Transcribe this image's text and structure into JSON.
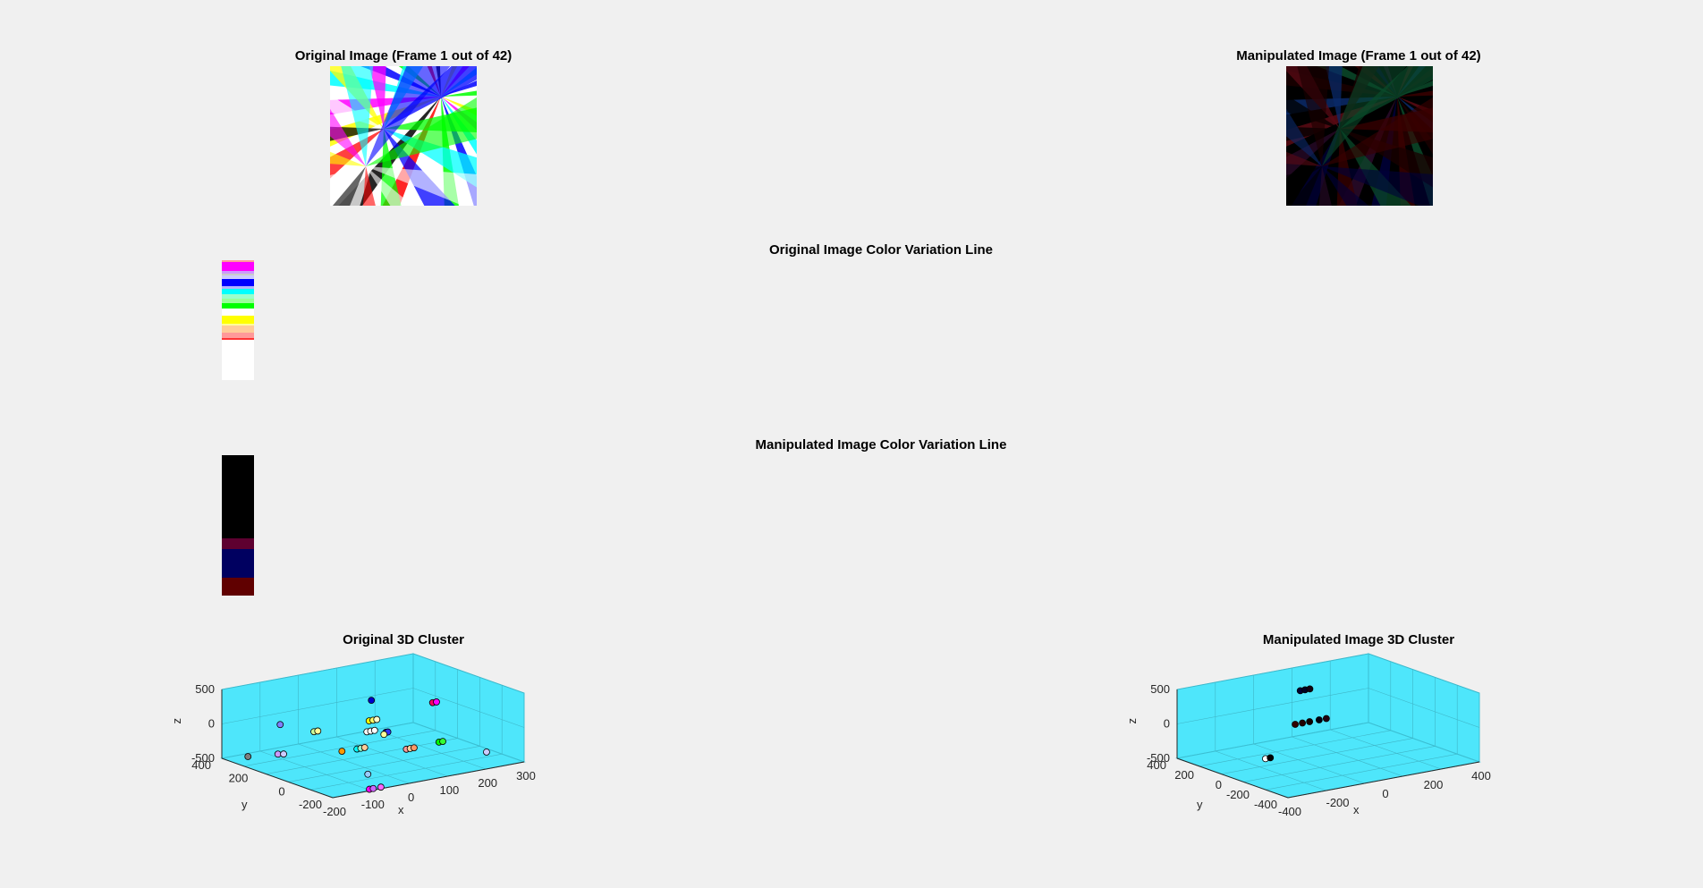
{
  "window": {
    "background": "#f0f0f0"
  },
  "titles": {
    "orig_image": "Original Image (Frame 1 out of 42)",
    "manip_image": "Manipulated Image (Frame 1 out of 42)",
    "orig_line": "Original Image Color Variation Line",
    "manip_line": "Manipulated Image Color Variation Line",
    "orig_cluster": "Original 3D Cluster",
    "manip_cluster": "Manipulated Image 3D Cluster"
  },
  "orig_colors": [
    "#ffffff",
    "#ffff00",
    "#ff00ff",
    "#00ffff",
    "#0000ff",
    "#00ff00",
    "#ffffff",
    "#ff0000",
    "#000000"
  ],
  "manip_colors": [
    "#000000",
    "#330000",
    "#000033",
    "#220022",
    "#001122",
    "#220000",
    "#002200",
    "#000022",
    "#111111"
  ],
  "orig_strip": [
    {
      "color": "#ff9999",
      "h": 2
    },
    {
      "color": "#ff00ff",
      "h": 2
    },
    {
      "color": "#ff00ff",
      "h": 8
    },
    {
      "color": "#cc99ff",
      "h": 3
    },
    {
      "color": "#cccccc",
      "h": 2
    },
    {
      "color": "#ccccff",
      "h": 4
    },
    {
      "color": "#0000ff",
      "h": 8
    },
    {
      "color": "#b3b3ff",
      "h": 3
    },
    {
      "color": "#00ffff",
      "h": 6
    },
    {
      "color": "#99ffcc",
      "h": 5
    },
    {
      "color": "#99ff99",
      "h": 5
    },
    {
      "color": "#00ff00",
      "h": 6
    },
    {
      "color": "#ffffff",
      "h": 8
    },
    {
      "color": "#ffff00",
      "h": 9
    },
    {
      "color": "#ffff99",
      "h": 2
    },
    {
      "color": "#ffcc99",
      "h": 8
    },
    {
      "color": "#ff9999",
      "h": 6
    },
    {
      "color": "#ff3333",
      "h": 2
    },
    {
      "color": "#ffffff",
      "h": 45
    }
  ],
  "manip_strip": [
    {
      "color": "#000000",
      "h": 93
    },
    {
      "color": "#5e0030",
      "h": 12
    },
    {
      "color": "#000060",
      "h": 32
    },
    {
      "color": "#600000",
      "h": 20
    }
  ],
  "orig_cluster": {
    "xlabel": "x",
    "ylabel": "y",
    "zlabel": "z",
    "xticks": [
      "-200",
      "-100",
      "0",
      "100",
      "200",
      "300"
    ],
    "yticks": [
      "-200",
      "0",
      "200",
      "400"
    ],
    "zticks": [
      "500",
      "0",
      "-500"
    ],
    "points": [
      {
        "x": -180,
        "y": 300,
        "z": -400,
        "c": "#7f7f7f"
      },
      {
        "x": -150,
        "y": 200,
        "z": -300,
        "c": "#cc99ff"
      },
      {
        "x": -140,
        "y": 190,
        "z": -300,
        "c": "#ccccff"
      },
      {
        "x": -120,
        "y": 250,
        "z": 50,
        "c": "#7f7fff"
      },
      {
        "x": -80,
        "y": 150,
        "z": 0,
        "c": "#ccff99"
      },
      {
        "x": -70,
        "y": 150,
        "z": 0,
        "c": "#ffff99"
      },
      {
        "x": -60,
        "y": 40,
        "z": -200,
        "c": "#ff9900"
      },
      {
        "x": -40,
        "y": 0,
        "z": -150,
        "c": "#00ffff"
      },
      {
        "x": -30,
        "y": 0,
        "z": -150,
        "c": "#99ffcc"
      },
      {
        "x": -20,
        "y": 0,
        "z": -150,
        "c": "#ffcc99"
      },
      {
        "x": -60,
        "y": -100,
        "z": -400,
        "c": "#99ccff"
      },
      {
        "x": -80,
        "y": -150,
        "z": -550,
        "c": "#ff00ff"
      },
      {
        "x": -70,
        "y": -150,
        "z": -550,
        "c": "#cc66ff"
      },
      {
        "x": -50,
        "y": -150,
        "z": -550,
        "c": "#ff66ff"
      },
      {
        "x": 10,
        "y": 50,
        "z": 0,
        "c": "#ffffff"
      },
      {
        "x": 20,
        "y": 50,
        "z": 0,
        "c": "#ffffff"
      },
      {
        "x": 30,
        "y": 50,
        "z": 0,
        "c": "#ffffff"
      },
      {
        "x": 40,
        "y": 100,
        "z": 80,
        "c": "#ffff00"
      },
      {
        "x": 50,
        "y": 100,
        "z": 80,
        "c": "#ffff66"
      },
      {
        "x": 60,
        "y": 100,
        "z": 80,
        "c": "#ffffcc"
      },
      {
        "x": 50,
        "y": 30,
        "z": -30,
        "c": "#0000ff"
      },
      {
        "x": 55,
        "y": 30,
        "z": -30,
        "c": "#3333ff"
      },
      {
        "x": 40,
        "y": 20,
        "z": -40,
        "c": "#ffff99"
      },
      {
        "x": 70,
        "y": 150,
        "z": 300,
        "c": "#0000cc"
      },
      {
        "x": 60,
        "y": -60,
        "z": -200,
        "c": "#ff9999"
      },
      {
        "x": 70,
        "y": -60,
        "z": -200,
        "c": "#ffcc99"
      },
      {
        "x": 80,
        "y": -60,
        "z": -200,
        "c": "#ff9966"
      },
      {
        "x": 150,
        "y": -50,
        "z": -200,
        "c": "#00ff00"
      },
      {
        "x": 160,
        "y": -50,
        "z": -200,
        "c": "#33ff33"
      },
      {
        "x": 230,
        "y": 150,
        "z": 100,
        "c": "#ff0066"
      },
      {
        "x": 240,
        "y": 150,
        "z": 100,
        "c": "#ff00ff"
      },
      {
        "x": 250,
        "y": -100,
        "z": -400,
        "c": "#ccccff"
      }
    ]
  },
  "manip_cluster": {
    "xlabel": "x",
    "ylabel": "y",
    "zlabel": "z",
    "xticks": [
      "-400",
      "-200",
      "0",
      "200",
      "400"
    ],
    "yticks": [
      "-400",
      "-200",
      "0",
      "200",
      "400"
    ],
    "zticks": [
      "500",
      "0",
      "-500"
    ],
    "points": [
      {
        "x": -30,
        "y": 150,
        "z": 420,
        "c": "#000033"
      },
      {
        "x": -10,
        "y": 150,
        "z": 420,
        "c": "#000022"
      },
      {
        "x": 10,
        "y": 150,
        "z": 420,
        "c": "#110011"
      },
      {
        "x": -80,
        "y": 100,
        "z": 0,
        "c": "#330000"
      },
      {
        "x": -50,
        "y": 100,
        "z": 0,
        "c": "#220000"
      },
      {
        "x": -20,
        "y": 100,
        "z": 0,
        "c": "#110000"
      },
      {
        "x": 20,
        "y": 100,
        "z": 0,
        "c": "#000011"
      },
      {
        "x": 50,
        "y": 100,
        "z": 0,
        "c": "#220011"
      },
      {
        "x": -320,
        "y": -100,
        "z": -200,
        "c": "#ffffff"
      },
      {
        "x": -300,
        "y": -100,
        "z": -200,
        "c": "#000000"
      }
    ]
  }
}
